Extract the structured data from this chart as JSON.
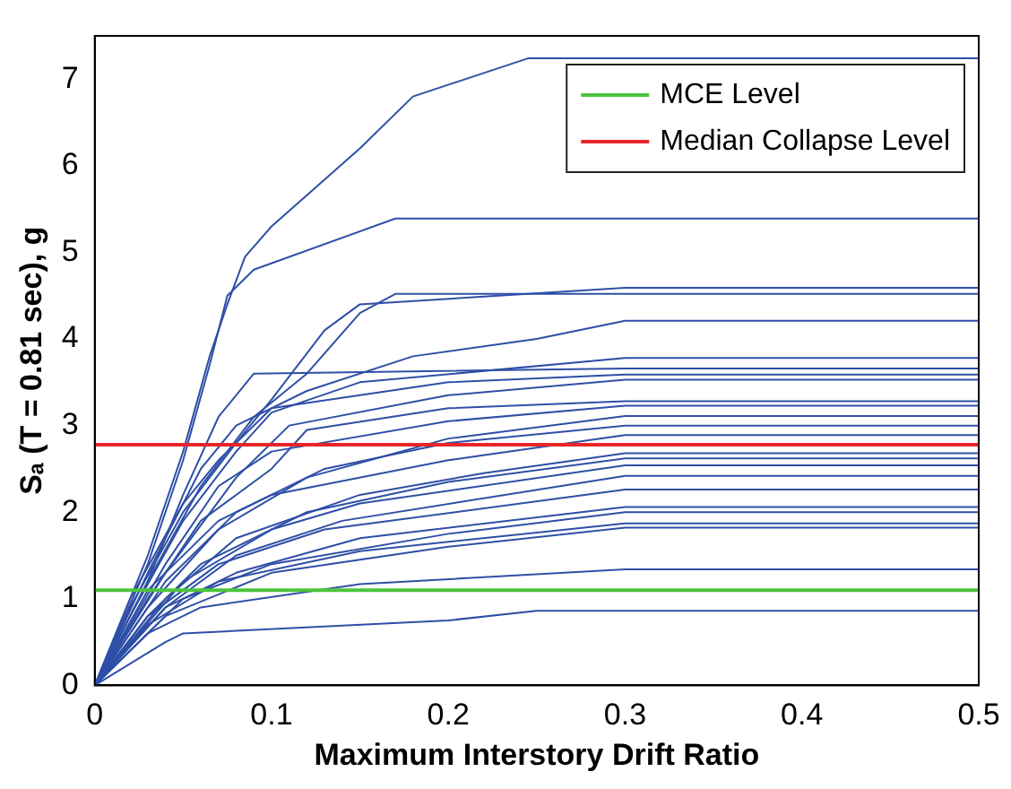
{
  "chart_data": {
    "type": "line",
    "xlabel": "Maximum Interstory Drift Ratio",
    "ylabel": "Sₐ (T = 0.81 sec), g",
    "xlim": [
      0,
      0.5
    ],
    "xticks": [
      0,
      0.1,
      0.2,
      0.3,
      0.4,
      0.5
    ],
    "ylim": [
      0,
      7.5
    ],
    "yticks": [
      0,
      1,
      2,
      3,
      4,
      5,
      6,
      7
    ],
    "grid": false,
    "legend": "top right",
    "marker": "none",
    "line_style": "solid",
    "ref_lines": [
      {
        "axis": "y",
        "value": 1.1,
        "label": "MCE Level",
        "color": "#4cc43c"
      },
      {
        "axis": "y",
        "value": 2.78,
        "label": "Median Collapse Level",
        "color": "#e8262a"
      }
    ],
    "series": [
      {
        "color": "#2e4fa6",
        "x": [
          0,
          0.03,
          0.05,
          0.065,
          0.075,
          0.085,
          0.1,
          0.15,
          0.18,
          0.245,
          0.5
        ],
        "values": [
          0,
          1.5,
          2.7,
          3.8,
          4.4,
          4.95,
          5.3,
          6.2,
          6.8,
          7.24,
          7.24
        ]
      },
      {
        "color": "#2e4fa6",
        "x": [
          0,
          0.03,
          0.05,
          0.065,
          0.075,
          0.09,
          0.17,
          0.5
        ],
        "values": [
          0,
          1.4,
          2.6,
          3.7,
          4.5,
          4.8,
          5.39,
          5.39
        ]
      },
      {
        "color": "#2e4fa6",
        "x": [
          0,
          0.02,
          0.05,
          0.08,
          0.1,
          0.13,
          0.15,
          0.3,
          0.5
        ],
        "values": [
          0,
          0.9,
          2.0,
          2.8,
          3.3,
          4.1,
          4.4,
          4.59,
          4.59
        ]
      },
      {
        "color": "#2e4fa6",
        "x": [
          0,
          0.03,
          0.06,
          0.09,
          0.12,
          0.15,
          0.17,
          0.5
        ],
        "values": [
          0,
          1.2,
          2.3,
          3.1,
          3.6,
          4.3,
          4.52,
          4.52
        ]
      },
      {
        "color": "#2e4fa6",
        "x": [
          0,
          0.03,
          0.06,
          0.08,
          0.12,
          0.18,
          0.25,
          0.3,
          0.5
        ],
        "values": [
          0,
          1.3,
          2.5,
          3.0,
          3.4,
          3.8,
          4.0,
          4.21,
          4.21
        ]
      },
      {
        "color": "#2e4fa6",
        "x": [
          0,
          0.02,
          0.05,
          0.08,
          0.1,
          0.15,
          0.3,
          0.5
        ],
        "values": [
          0,
          0.8,
          1.9,
          2.7,
          3.15,
          3.5,
          3.78,
          3.78
        ]
      },
      {
        "color": "#2e4fa6",
        "x": [
          0,
          0.03,
          0.05,
          0.07,
          0.09,
          0.3,
          0.5
        ],
        "values": [
          0,
          1.2,
          2.2,
          3.1,
          3.6,
          3.66,
          3.66
        ]
      },
      {
        "color": "#2e4fa6",
        "x": [
          0,
          0.02,
          0.05,
          0.07,
          0.1,
          0.2,
          0.3,
          0.5
        ],
        "values": [
          0,
          1.0,
          2.1,
          2.6,
          3.2,
          3.5,
          3.59,
          3.59
        ]
      },
      {
        "color": "#2e4fa6",
        "x": [
          0,
          0.04,
          0.08,
          0.11,
          0.2,
          0.3,
          0.5
        ],
        "values": [
          0,
          1.3,
          2.4,
          3.0,
          3.35,
          3.53,
          3.53
        ]
      },
      {
        "color": "#2e4fa6",
        "x": [
          0,
          0.03,
          0.06,
          0.1,
          0.12,
          0.2,
          0.3,
          0.5
        ],
        "values": [
          0,
          1.0,
          1.9,
          2.5,
          2.95,
          3.2,
          3.28,
          3.28
        ]
      },
      {
        "color": "#2e4fa6",
        "x": [
          0,
          0.04,
          0.07,
          0.1,
          0.2,
          0.3,
          0.5
        ],
        "values": [
          0,
          1.4,
          2.3,
          2.7,
          3.05,
          3.23,
          3.23
        ]
      },
      {
        "color": "#2e4fa6",
        "x": [
          0,
          0.03,
          0.07,
          0.12,
          0.2,
          0.3,
          0.5
        ],
        "values": [
          0,
          0.9,
          1.8,
          2.4,
          2.85,
          3.11,
          3.11
        ]
      },
      {
        "color": "#2e4fa6",
        "x": [
          0,
          0.04,
          0.08,
          0.13,
          0.2,
          0.3,
          0.5
        ],
        "values": [
          0,
          1.2,
          2.0,
          2.5,
          2.8,
          3.0,
          3.0
        ]
      },
      {
        "color": "#2e4fa6",
        "x": [
          0,
          0.03,
          0.07,
          0.1,
          0.2,
          0.3,
          0.5
        ],
        "values": [
          0,
          1.1,
          1.9,
          2.2,
          2.6,
          2.89,
          2.89
        ]
      },
      {
        "color": "#2e4fa6",
        "x": [
          0,
          0.04,
          0.08,
          0.15,
          0.22,
          0.3,
          0.5
        ],
        "values": [
          0,
          1.0,
          1.7,
          2.2,
          2.45,
          2.68,
          2.68
        ]
      },
      {
        "color": "#2e4fa6",
        "x": [
          0,
          0.03,
          0.06,
          0.12,
          0.2,
          0.3,
          0.5
        ],
        "values": [
          0,
          0.8,
          1.4,
          2.0,
          2.35,
          2.62,
          2.62
        ]
      },
      {
        "color": "#2e4fa6",
        "x": [
          0,
          0.05,
          0.1,
          0.15,
          0.3,
          0.5
        ],
        "values": [
          0,
          1.2,
          1.8,
          2.1,
          2.54,
          2.54
        ]
      },
      {
        "color": "#2e4fa6",
        "x": [
          0,
          0.04,
          0.08,
          0.14,
          0.3,
          0.5
        ],
        "values": [
          0,
          0.9,
          1.5,
          1.9,
          2.42,
          2.42
        ]
      },
      {
        "color": "#2e4fa6",
        "x": [
          0,
          0.03,
          0.07,
          0.13,
          0.3,
          0.5
        ],
        "values": [
          0,
          0.8,
          1.4,
          1.8,
          2.26,
          2.26
        ]
      },
      {
        "color": "#2e4fa6",
        "x": [
          0,
          0.04,
          0.08,
          0.15,
          0.3,
          0.5
        ],
        "values": [
          0,
          0.9,
          1.3,
          1.7,
          2.06,
          2.06
        ]
      },
      {
        "color": "#2e4fa6",
        "x": [
          0,
          0.05,
          0.1,
          0.2,
          0.3,
          0.5
        ],
        "values": [
          0,
          1.0,
          1.4,
          1.75,
          2.0,
          2.0
        ]
      },
      {
        "color": "#2e4fa6",
        "x": [
          0,
          0.03,
          0.07,
          0.15,
          0.3,
          0.5
        ],
        "values": [
          0,
          0.7,
          1.2,
          1.55,
          1.87,
          1.87
        ]
      },
      {
        "color": "#2e4fa6",
        "x": [
          0,
          0.04,
          0.1,
          0.2,
          0.3,
          0.5
        ],
        "values": [
          0,
          0.8,
          1.3,
          1.6,
          1.82,
          1.82
        ]
      },
      {
        "color": "#2e4fa6",
        "x": [
          0,
          0.03,
          0.06,
          0.15,
          0.3,
          0.5
        ],
        "values": [
          0,
          0.6,
          0.9,
          1.17,
          1.34,
          1.34
        ]
      },
      {
        "color": "#2e4fa6",
        "x": [
          0,
          0.04,
          0.05,
          0.2,
          0.25,
          0.5
        ],
        "values": [
          0,
          0.5,
          0.6,
          0.75,
          0.86,
          0.86
        ]
      }
    ]
  }
}
